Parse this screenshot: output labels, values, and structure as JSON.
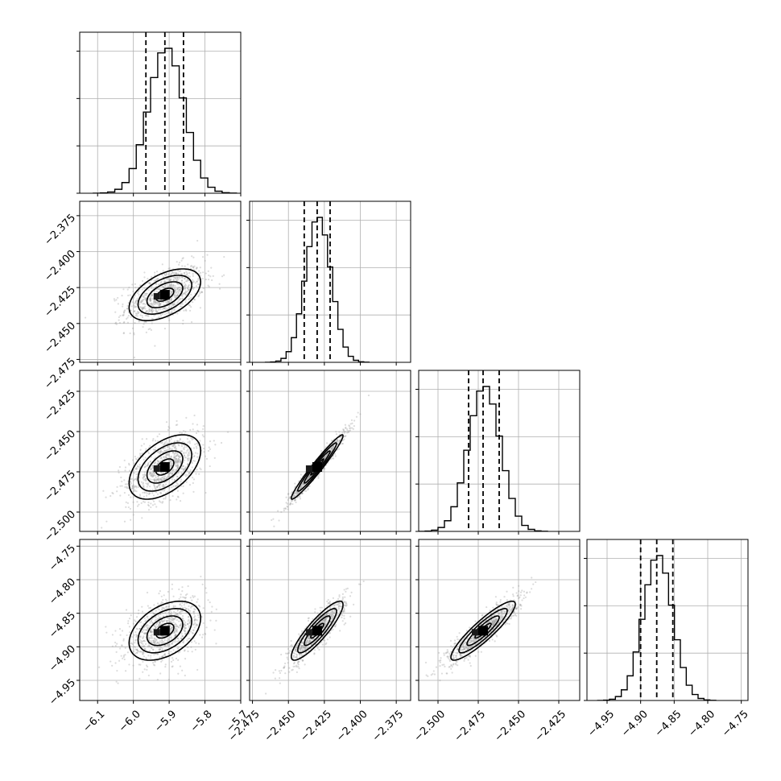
{
  "chart_data": {
    "type": "corner",
    "parameters": [
      {
        "index": 0,
        "range": [
          -6.15,
          -5.7
        ],
        "ticks": [
          -6.1,
          -6.0,
          -5.9,
          -5.8,
          -5.7
        ],
        "tick_labels": [
          "−6.1",
          "−6.0",
          "−5.9",
          "−5.8",
          "−5.7"
        ],
        "mean": -5.912,
        "std": 0.05,
        "quantiles": [
          -5.965,
          -5.912,
          -5.86
        ]
      },
      {
        "index": 1,
        "range": [
          -2.477,
          -2.365
        ],
        "ticks": [
          -2.475,
          -2.45,
          -2.425,
          -2.4,
          -2.375
        ],
        "tick_labels": [
          "−2.475",
          "−2.450",
          "−2.425",
          "−2.400",
          "−2.375"
        ],
        "mean": -2.43,
        "std": 0.009,
        "quantiles": [
          -2.439,
          -2.43,
          -2.421
        ]
      },
      {
        "index": 2,
        "range": [
          -2.512,
          -2.412
        ],
        "ticks": [
          -2.5,
          -2.475,
          -2.45,
          -2.425
        ],
        "tick_labels": [
          "−2.500",
          "−2.475",
          "−2.450",
          "−2.425"
        ],
        "mean": -2.472,
        "std": 0.01,
        "quantiles": [
          -2.481,
          -2.472,
          -2.462
        ]
      },
      {
        "index": 3,
        "range": [
          -4.98,
          -4.74
        ],
        "ticks": [
          -4.95,
          -4.9,
          -4.85,
          -4.8,
          -4.75
        ],
        "tick_labels": [
          "−4.95",
          "−4.90",
          "−4.85",
          "−4.80",
          "−4.75"
        ],
        "mean": -4.876,
        "std": 0.022,
        "quantiles": [
          -4.9,
          -4.876,
          -4.852
        ]
      }
    ],
    "y_tick_labels": [
      {
        "row": 1,
        "ticks": [
          -2.375,
          -2.4,
          -2.425,
          -2.45,
          -2.475
        ],
        "labels": [
          "−2.375",
          "−2.400",
          "−2.425",
          "−2.450",
          "−2.475"
        ]
      },
      {
        "row": 2,
        "ticks": [
          -2.425,
          -2.45,
          -2.475,
          -2.5
        ],
        "labels": [
          "−2.425",
          "−2.450",
          "−2.475",
          "−2.500"
        ]
      },
      {
        "row": 3,
        "ticks": [
          -4.75,
          -4.8,
          -4.85,
          -4.9,
          -4.95
        ],
        "labels": [
          "−4.75",
          "−4.80",
          "−4.85",
          "−4.90",
          "−4.95"
        ]
      }
    ],
    "correlations": [
      [
        0,
        0.5,
        0.5,
        0.42
      ],
      [
        0.5,
        0,
        0.97,
        0.88
      ],
      [
        0.5,
        0.97,
        0,
        0.9
      ],
      [
        0.42,
        0.88,
        0.9,
        0
      ]
    ],
    "contour_levels_sigma": [
      0.5,
      1.0,
      1.5,
      2.0
    ],
    "histogram_bins": 20,
    "grid": true,
    "colors": {
      "line": "#000000",
      "points": "#9a9a9a",
      "grid": "#b0b0b0"
    }
  }
}
